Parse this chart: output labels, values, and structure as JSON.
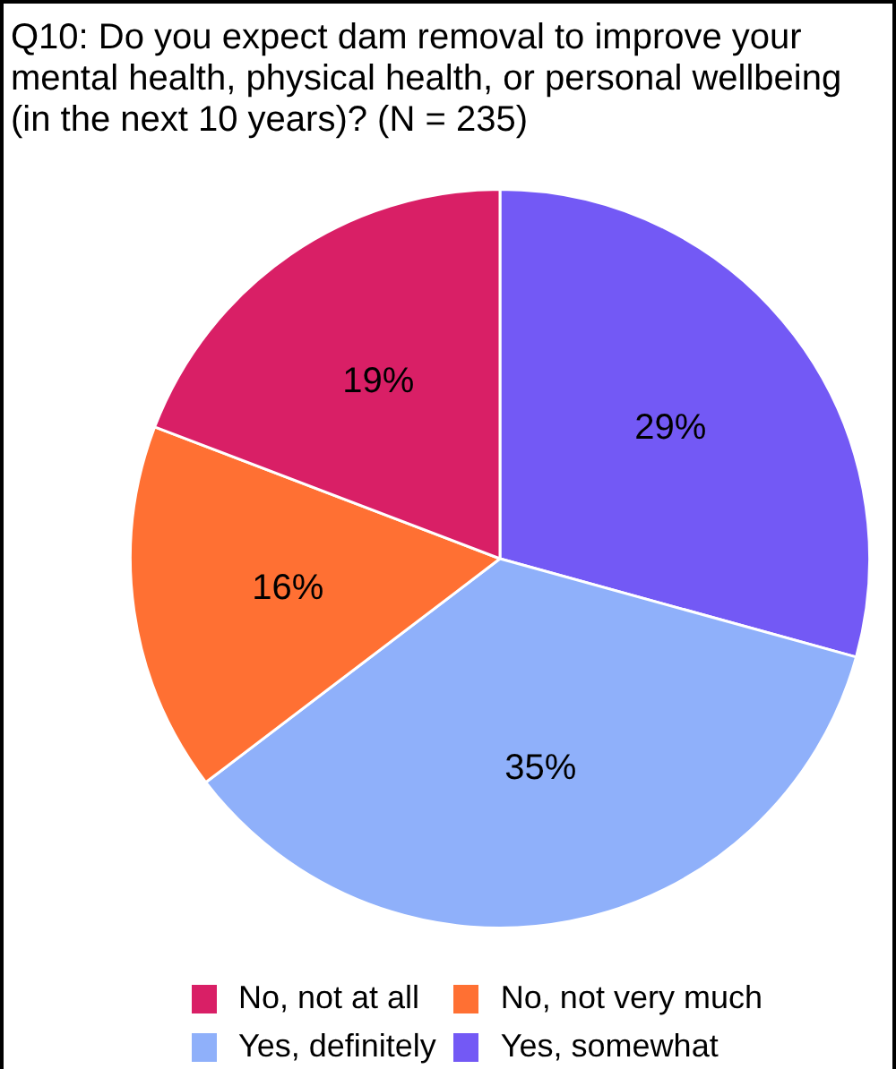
{
  "chart_data": {
    "type": "pie",
    "title": "Q10: Do you expect dam removal to improve your mental health, physical health, or personal wellbeing (in the next 10 years)? (N = 235)",
    "categories": [
      "Yes, somewhat",
      "Yes, definitely",
      "No, not very much",
      "No, not at all"
    ],
    "values": [
      29,
      35,
      16,
      19
    ],
    "value_labels": [
      "29%",
      "35%",
      "16%",
      "19%"
    ],
    "colors": [
      "#7359f5",
      "#8fb0fa",
      "#ff7033",
      "#d91f66"
    ],
    "legend": "bottom"
  }
}
